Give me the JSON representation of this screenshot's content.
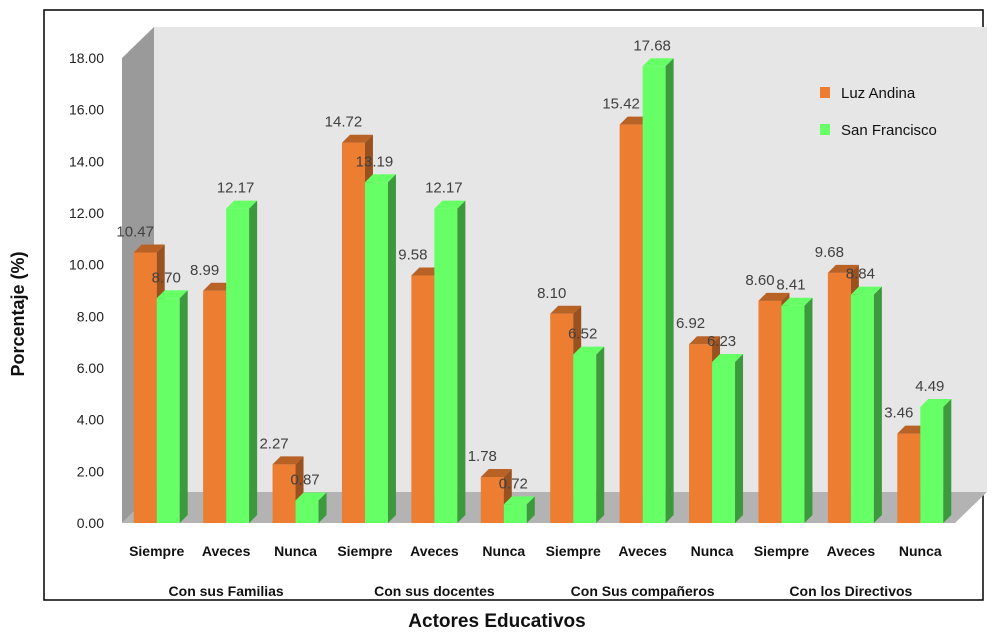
{
  "chart_data": {
    "type": "bar",
    "title": "",
    "xlabel": "Actores Educativos",
    "ylabel": "Porcentaje (%)",
    "ylim": [
      0,
      18
    ],
    "ytick_labels": [
      "0.00",
      "2.00",
      "4.00",
      "6.00",
      "8.00",
      "10.00",
      "12.00",
      "14.00",
      "16.00",
      "18.00"
    ],
    "categories": [
      "Siempre",
      "Aveces",
      "Nunca",
      "Siempre",
      "Aveces",
      "Nunca",
      "Siempre",
      "Aveces",
      "Nunca",
      "Siempre",
      "Aveces",
      "Nunca"
    ],
    "groups": [
      "Con sus Familias",
      "Con sus docentes",
      "Con Sus compañeros",
      "Con los Directivos"
    ],
    "series": [
      {
        "name": "Luz Andina",
        "color": "#ED7D31",
        "values": [
          10.47,
          8.99,
          2.27,
          14.72,
          9.58,
          1.78,
          8.1,
          15.42,
          6.92,
          8.6,
          9.68,
          3.46
        ]
      },
      {
        "name": "San Francisco",
        "color": "#66FF66",
        "values": [
          8.7,
          12.17,
          0.87,
          13.19,
          12.17,
          0.72,
          6.52,
          17.68,
          6.23,
          8.41,
          8.84,
          4.49
        ]
      }
    ],
    "legend": "top-right",
    "grid": false,
    "style": "3d-clustered-column"
  }
}
